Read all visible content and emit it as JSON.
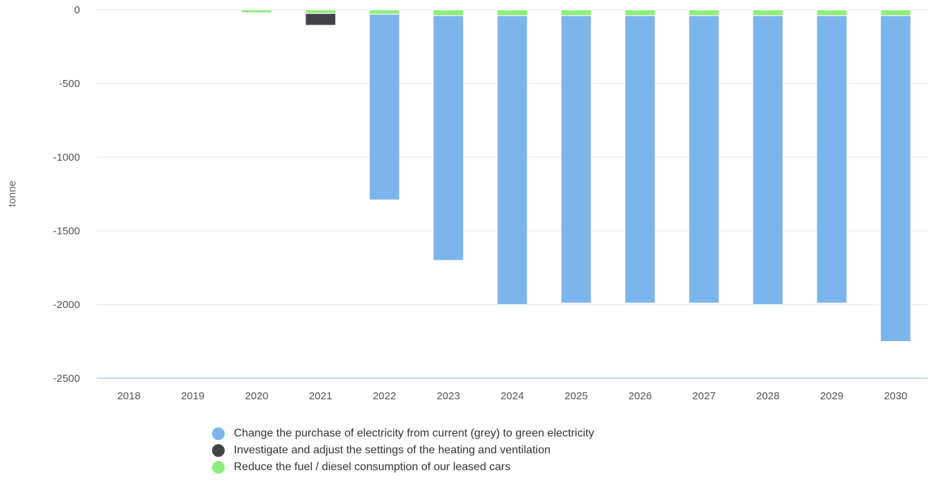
{
  "chart_data": {
    "type": "bar",
    "stacked": true,
    "ylabel": "tonne",
    "ylim": [
      -2500,
      0
    ],
    "yticks": [
      0,
      -500,
      -1000,
      -1500,
      -2000,
      -2500
    ],
    "categories": [
      "2018",
      "2019",
      "2020",
      "2021",
      "2022",
      "2023",
      "2024",
      "2025",
      "2026",
      "2027",
      "2028",
      "2029",
      "2030"
    ],
    "grid": true,
    "legend_position": "bottom-center",
    "series": [
      {
        "name": "Reduce the fuel / diesel consumption of our leased cars",
        "color": "#90ed7d",
        "values": [
          0,
          0,
          -20,
          -25,
          -30,
          -40,
          -40,
          -40,
          -40,
          -40,
          -40,
          -40,
          -40
        ]
      },
      {
        "name": "Investigate and adjust the settings of the heating and ventilation",
        "color": "#434348",
        "values": [
          0,
          0,
          0,
          -80,
          0,
          0,
          0,
          0,
          0,
          0,
          0,
          0,
          0
        ]
      },
      {
        "name": "Change the purchase of electricity from current (grey) to green electricity",
        "color": "#7cb5ec",
        "values": [
          0,
          0,
          0,
          0,
          -1260,
          -1660,
          -1960,
          -1950,
          -1950,
          -1950,
          -1960,
          -1950,
          -2210
        ]
      }
    ]
  },
  "legend": [
    {
      "label": "Change the purchase of electricity from current (grey) to green electricity",
      "color": "#7cb5ec"
    },
    {
      "label": "Investigate and adjust the settings of the heating and ventilation",
      "color": "#434348"
    },
    {
      "label": "Reduce the fuel / diesel consumption of our leased cars",
      "color": "#90ed7d"
    }
  ]
}
